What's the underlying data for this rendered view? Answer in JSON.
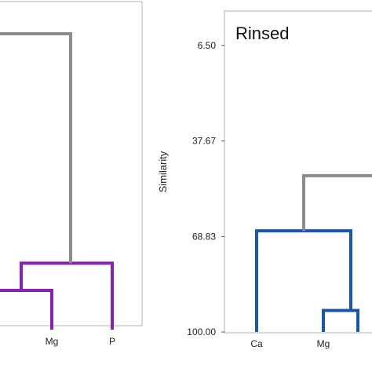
{
  "chart_data": [
    {
      "type": "dendrogram",
      "title": "",
      "ylabel": "",
      "xtick_labels": [
        "Mg",
        "P"
      ],
      "link_color": "#8a1fb4",
      "top_link_color": "#8c8c8c",
      "merges": [
        {
          "left": "(cut off)",
          "right": "Mg",
          "similarity": 87
        },
        {
          "left": "(cut off)+Mg",
          "right": "P",
          "similarity": 78
        },
        {
          "left": "(cut off)",
          "right": "(cut off)",
          "similarity": 2
        }
      ]
    },
    {
      "type": "dendrogram",
      "title": "Rinsed",
      "ylabel": "Similarity",
      "ylim": [
        100.0,
        6.5
      ],
      "yticks": [
        "6.50",
        "37.67",
        "68.83",
        "100.00"
      ],
      "ytick_values": [
        6.5,
        37.67,
        68.83,
        100.0
      ],
      "xtick_labels": [
        "Ca",
        "Mg"
      ],
      "link_color": "#1a57a6",
      "top_link_color": "#8c8c8c",
      "merges": [
        {
          "left": "Mg",
          "right": "(cut off)",
          "similarity": 93
        },
        {
          "left": "Ca",
          "right": "Mg+(cut off)",
          "similarity": 67
        },
        {
          "left": "Ca+Mg+(cut off)",
          "right": "(cut off)",
          "similarity": 49
        }
      ]
    }
  ]
}
